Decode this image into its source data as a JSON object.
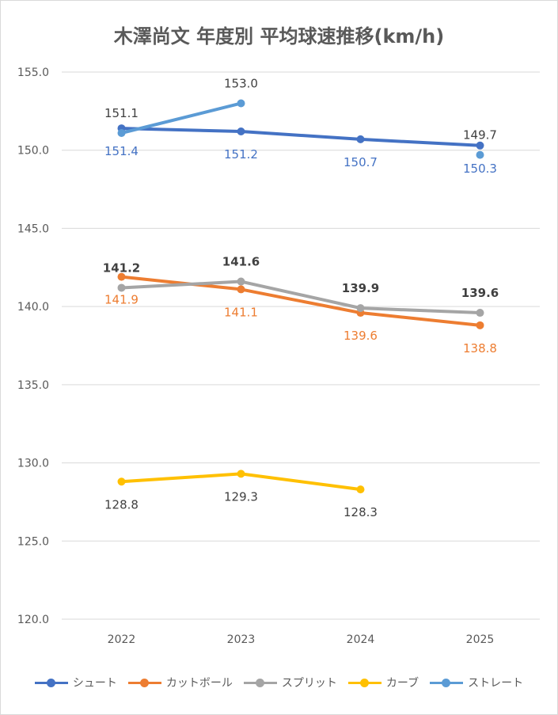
{
  "chart_data": {
    "type": "line",
    "title": "木澤尚文 年度別 平均球速推移(km/h)",
    "categories": [
      "2022",
      "2023",
      "2024",
      "2025"
    ],
    "ylim": [
      120,
      155
    ],
    "yticks": [
      "120.0",
      "125.0",
      "130.0",
      "135.0",
      "140.0",
      "145.0",
      "150.0",
      "155.0"
    ],
    "grid": true,
    "legend_position": "bottom",
    "series": [
      {
        "name": "シュート",
        "color": "#4472c4",
        "values": [
          151.4,
          151.2,
          150.7,
          150.3
        ],
        "labels": [
          "151.4",
          "151.2",
          "150.7",
          "150.3"
        ],
        "label_pos": "below",
        "label_color": "#4472c4",
        "label_bold": false
      },
      {
        "name": "カットボール",
        "color": "#ed7d31",
        "values": [
          141.9,
          141.1,
          139.6,
          138.8
        ],
        "labels": [
          "141.9",
          "141.1",
          "139.6",
          "138.8"
        ],
        "label_pos": "below",
        "label_color": "#ed7d31",
        "label_bold": false
      },
      {
        "name": "スプリット",
        "color": "#a5a5a5",
        "values": [
          141.2,
          141.6,
          139.9,
          139.6
        ],
        "labels": [
          "141.2",
          "141.6",
          "139.9",
          "139.6"
        ],
        "label_pos": "above",
        "label_color": "#404040",
        "label_bold": true
      },
      {
        "name": "カーブ",
        "color": "#ffc000",
        "values": [
          128.8,
          129.3,
          128.3,
          null
        ],
        "labels": [
          "128.8",
          "129.3",
          "128.3",
          null
        ],
        "label_pos": "below",
        "label_color": "#404040",
        "label_bold": false
      },
      {
        "name": "ストレート",
        "color": "#5b9bd5",
        "values": [
          151.1,
          153.0,
          null,
          149.7
        ],
        "labels": [
          "151.1",
          "153.0",
          null,
          "149.7"
        ],
        "label_pos": "above",
        "label_color": "#404040",
        "label_bold": false
      }
    ]
  }
}
